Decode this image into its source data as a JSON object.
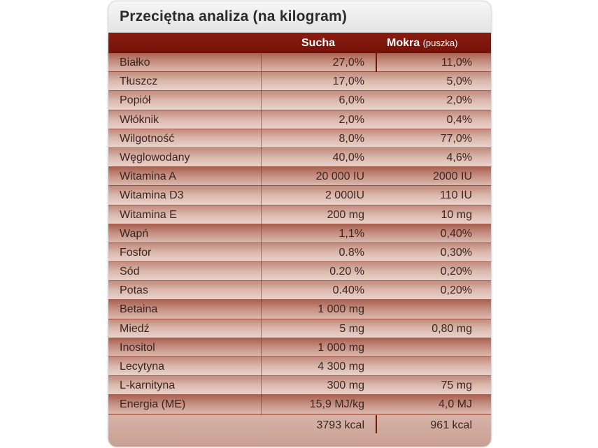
{
  "title": "Przeciętna analiza (na kilogram)",
  "columns": {
    "dry": "Sucha",
    "wet": "Mokra",
    "wet_sub": "(puszka)"
  },
  "rows": [
    {
      "label": "Białko",
      "dry": "27,0%",
      "wet": "11,0%"
    },
    {
      "label": "Tłuszcz",
      "dry": "17,0%",
      "wet": "5,0%"
    },
    {
      "label": "Popiół",
      "dry": "6,0%",
      "wet": "2,0%"
    },
    {
      "label": "Włóknik",
      "dry": "2,0%",
      "wet": "0,4%"
    },
    {
      "label": "Wilgotność",
      "dry": "8,0%",
      "wet": "77,0%"
    },
    {
      "label": "Węglowodany",
      "dry": "40,0%",
      "wet": "4,6%"
    },
    {
      "label": "Witamina A",
      "dry": "20 000 IU",
      "wet": "2000 IU"
    },
    {
      "label": "Witamina D3",
      "dry": "2 000IU",
      "wet": "110 IU"
    },
    {
      "label": "Witamina E",
      "dry": "200 mg",
      "wet": "10 mg"
    },
    {
      "label": "Wapń",
      "dry": "1,1%",
      "wet": "0,40%"
    },
    {
      "label": "Fosfor",
      "dry": "0.8%",
      "wet": "0,30%"
    },
    {
      "label": "Sód",
      "dry": "0.20 %",
      "wet": "0,20%"
    },
    {
      "label": "Potas",
      "dry": "0.40%",
      "wet": "0,20%"
    },
    {
      "label": "Betaina",
      "dry": "1 000 mg",
      "wet": ""
    },
    {
      "label": "Miedź",
      "dry": "5 mg",
      "wet": "0,80 mg"
    },
    {
      "label": "Inositol",
      "dry": "1 000 mg",
      "wet": ""
    },
    {
      "label": "Lecytyna",
      "dry": "4 300 mg",
      "wet": ""
    },
    {
      "label": "L-karnityna",
      "dry": "300 mg",
      "wet": "75 mg"
    },
    {
      "label": "Energia (ME)",
      "dry": "15,9 MJ/kg",
      "wet": "4,0 MJ"
    }
  ],
  "kcal": {
    "dry": "3793 kcal",
    "wet": "961 kcal"
  }
}
